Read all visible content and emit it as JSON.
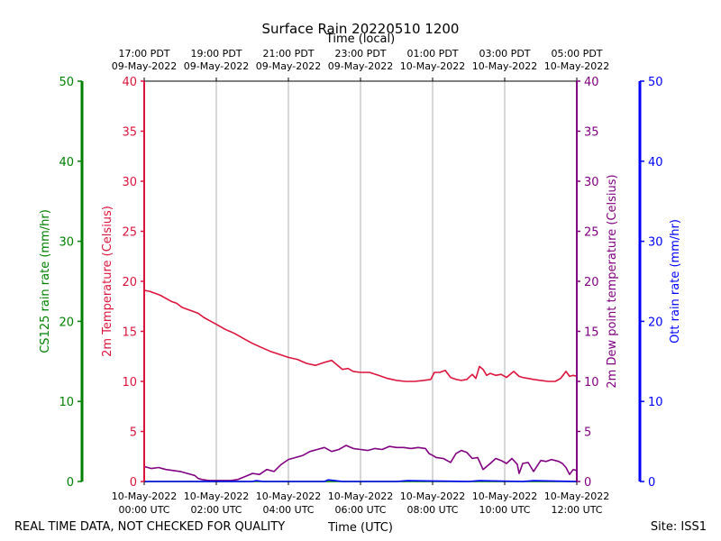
{
  "chart_data": {
    "type": "line",
    "title": "Surface Rain 20220510 1200",
    "top_axis_label": "Time (local)",
    "xlabel": "Time (UTC)",
    "footer_left": "REAL TIME DATA, NOT CHECKED FOR QUALITY",
    "footer_right": "Site: ISS1",
    "x_hours": [
      0,
      12
    ],
    "utc_ticks": [
      {
        "h": 0,
        "date": "10-May-2022",
        "time": "00:00 UTC"
      },
      {
        "h": 2,
        "date": "10-May-2022",
        "time": "02:00 UTC"
      },
      {
        "h": 4,
        "date": "10-May-2022",
        "time": "04:00 UTC"
      },
      {
        "h": 6,
        "date": "10-May-2022",
        "time": "06:00 UTC"
      },
      {
        "h": 8,
        "date": "10-May-2022",
        "time": "08:00 UTC"
      },
      {
        "h": 10,
        "date": "10-May-2022",
        "time": "10:00 UTC"
      },
      {
        "h": 12,
        "date": "10-May-2022",
        "time": "12:00 UTC"
      }
    ],
    "local_ticks": [
      {
        "h": 0,
        "time": "17:00 PDT",
        "date": "09-May-2022"
      },
      {
        "h": 2,
        "time": "19:00 PDT",
        "date": "09-May-2022"
      },
      {
        "h": 4,
        "time": "21:00 PDT",
        "date": "09-May-2022"
      },
      {
        "h": 6,
        "time": "23:00 PDT",
        "date": "09-May-2022"
      },
      {
        "h": 8,
        "time": "01:00 PDT",
        "date": "10-May-2022"
      },
      {
        "h": 10,
        "time": "03:00 PDT",
        "date": "10-May-2022"
      },
      {
        "h": 12,
        "time": "05:00 PDT",
        "date": "10-May-2022"
      }
    ],
    "axes": {
      "cs125": {
        "label": "CS125 rain rate (mm/hr)",
        "ylim": [
          0,
          50
        ],
        "ticks": [
          "0",
          "10",
          "20",
          "30",
          "40",
          "50"
        ],
        "color": "#008000"
      },
      "temp": {
        "label": "2m Temperature (Celsius)",
        "ylim": [
          0,
          40
        ],
        "ticks": [
          "0",
          "5",
          "10",
          "15",
          "20",
          "25",
          "30",
          "35",
          "40"
        ],
        "color": "#dc143c"
      },
      "dew": {
        "label": "2m Dew point temperature (Celsius)",
        "ylim": [
          0,
          40
        ],
        "ticks": [
          "0",
          "5",
          "10",
          "15",
          "20",
          "25",
          "30",
          "35",
          "40"
        ],
        "color": "#800080"
      },
      "ott": {
        "label": "Ott rain rate (mm/hr)",
        "ylim": [
          0,
          50
        ],
        "ticks": [
          "0",
          "10",
          "20",
          "30",
          "40",
          "50"
        ],
        "color": "#0000ff"
      }
    },
    "series": [
      {
        "name": "2m Temperature",
        "axis": "temp",
        "color": "#dc143c",
        "x": [
          0,
          0.15,
          0.3,
          0.45,
          0.6,
          0.75,
          0.9,
          1.05,
          1.2,
          1.35,
          1.5,
          1.65,
          1.8,
          2.0,
          2.25,
          2.5,
          2.75,
          3.0,
          3.25,
          3.5,
          3.75,
          4.0,
          4.25,
          4.5,
          4.75,
          5.0,
          5.2,
          5.4,
          5.5,
          5.65,
          5.8,
          6.0,
          6.25,
          6.5,
          6.75,
          7.0,
          7.25,
          7.5,
          7.75,
          7.95,
          8.05,
          8.2,
          8.35,
          8.5,
          8.65,
          8.8,
          8.95,
          9.1,
          9.2,
          9.3,
          9.4,
          9.5,
          9.6,
          9.75,
          9.9,
          10.05,
          10.25,
          10.4,
          10.5,
          10.65,
          10.8,
          11.0,
          11.2,
          11.4,
          11.55,
          11.7,
          11.8,
          11.9,
          12.0
        ],
        "values": [
          19.1,
          19.0,
          18.8,
          18.6,
          18.3,
          18.0,
          17.8,
          17.4,
          17.2,
          17.0,
          16.8,
          16.4,
          16.1,
          15.7,
          15.2,
          14.8,
          14.3,
          13.8,
          13.4,
          13.0,
          12.7,
          12.4,
          12.2,
          11.8,
          11.6,
          11.9,
          12.1,
          11.5,
          11.2,
          11.3,
          11.0,
          10.9,
          10.9,
          10.6,
          10.3,
          10.1,
          10.0,
          10.0,
          10.1,
          10.2,
          10.9,
          10.9,
          11.1,
          10.4,
          10.2,
          10.1,
          10.2,
          10.7,
          10.3,
          11.5,
          11.2,
          10.6,
          10.8,
          10.6,
          10.7,
          10.4,
          11.0,
          10.5,
          10.4,
          10.3,
          10.2,
          10.1,
          10.0,
          10.0,
          10.3,
          11.0,
          10.5,
          10.6,
          10.5
        ]
      },
      {
        "name": "2m Dew point temperature",
        "axis": "dew",
        "color": "#800080",
        "x": [
          0,
          0.2,
          0.4,
          0.6,
          0.8,
          1.0,
          1.2,
          1.4,
          1.5,
          1.6,
          1.8,
          2.0,
          2.2,
          2.4,
          2.6,
          2.8,
          3.0,
          3.2,
          3.4,
          3.6,
          3.8,
          4.0,
          4.2,
          4.4,
          4.6,
          4.8,
          5.0,
          5.2,
          5.4,
          5.6,
          5.8,
          6.0,
          6.2,
          6.4,
          6.6,
          6.8,
          7.0,
          7.2,
          7.4,
          7.6,
          7.8,
          7.9,
          8.0,
          8.1,
          8.3,
          8.5,
          8.65,
          8.8,
          8.95,
          9.1,
          9.25,
          9.4,
          9.5,
          9.6,
          9.75,
          9.9,
          10.05,
          10.2,
          10.35,
          10.4,
          10.5,
          10.65,
          10.8,
          11.0,
          11.15,
          11.3,
          11.5,
          11.6,
          11.7,
          11.8,
          11.9,
          12.0
        ],
        "values": [
          1.5,
          1.3,
          1.4,
          1.2,
          1.1,
          1.0,
          0.8,
          0.6,
          0.3,
          0.2,
          0.1,
          0.1,
          0.1,
          0.1,
          0.2,
          0.5,
          0.8,
          0.7,
          1.2,
          1.0,
          1.7,
          2.2,
          2.4,
          2.6,
          3.0,
          3.2,
          3.4,
          3.0,
          3.2,
          3.6,
          3.3,
          3.2,
          3.1,
          3.3,
          3.2,
          3.5,
          3.4,
          3.4,
          3.3,
          3.4,
          3.3,
          2.8,
          2.6,
          2.4,
          2.3,
          1.9,
          2.8,
          3.1,
          2.9,
          2.3,
          2.4,
          1.2,
          1.5,
          1.8,
          2.3,
          2.1,
          1.8,
          2.3,
          1.7,
          0.8,
          1.8,
          1.9,
          1.0,
          2.1,
          2.0,
          2.2,
          2.0,
          1.8,
          1.4,
          0.7,
          1.2,
          1.1
        ]
      },
      {
        "name": "CS125 rain rate",
        "axis": "cs125",
        "color": "#008000",
        "x": [
          0,
          12
        ],
        "values": [
          0,
          0
        ]
      },
      {
        "name": "Ott rain rate",
        "axis": "ott",
        "color": "#0000ff",
        "x": [
          0,
          3,
          3.1,
          3.3,
          5.0,
          5.1,
          5.3,
          5.5,
          7.0,
          7.3,
          9.0,
          9.3,
          10.5,
          10.8,
          12.0
        ],
        "values": [
          0,
          0,
          0.1,
          0,
          0,
          0.2,
          0.1,
          0,
          0,
          0.1,
          0,
          0.1,
          0,
          0.1,
          0
        ]
      }
    ]
  }
}
